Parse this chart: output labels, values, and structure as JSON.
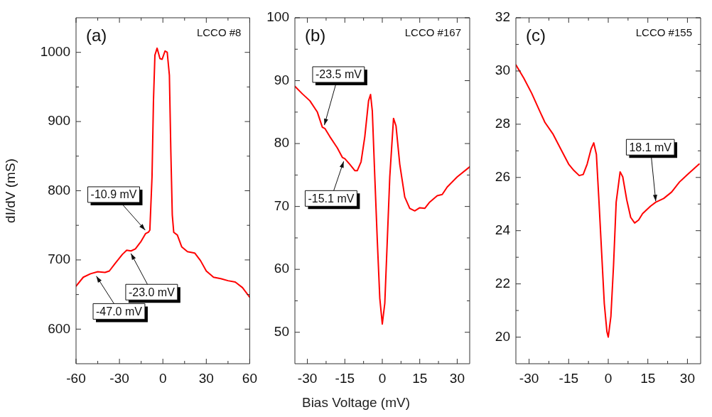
{
  "chart_data": [
    {
      "type": "line",
      "title": "(a)",
      "ylabel": "dI/dV (mS)",
      "annotations": [
        "LCCO #8",
        {
          "text": "-10.9 mV",
          "x": -10.9,
          "y": 740
        },
        {
          "text": "-23.0 mV",
          "x": -23.0,
          "y": 713
        },
        {
          "text": "-47.0 mV",
          "x": -47.0,
          "y": 680
        }
      ],
      "xlim": [
        -60,
        60
      ],
      "xticks": [
        -60,
        {
          "value": -45,
          "label": null
        },
        -30,
        {
          "value": -15,
          "label": null
        },
        0,
        {
          "value": 15,
          "label": null
        },
        30,
        {
          "value": 45,
          "label": null
        },
        60
      ],
      "ylim": [
        550,
        1050
      ],
      "yticks": [
        600,
        {
          "value": 650,
          "label": null
        },
        700,
        {
          "value": 750,
          "label": null
        },
        800,
        {
          "value": 850,
          "label": null
        },
        900,
        {
          "value": 950,
          "label": null
        },
        1000
      ],
      "grid": false,
      "legend": false,
      "marker": "none",
      "line_style": "solid",
      "series": [
        {
          "color": "#ff0000",
          "x": [
            -60,
            -55,
            -50,
            -45,
            -40,
            -37,
            -33,
            -28,
            -25,
            -22,
            -19,
            -15,
            -12,
            -10,
            -9,
            -7.5,
            -6.5,
            -5.5,
            -4,
            -2,
            -0.5,
            1.5,
            3,
            4.5,
            5.5,
            6.5,
            7.5,
            10,
            13,
            17,
            22,
            26,
            30,
            35,
            40,
            45,
            50,
            55,
            60
          ],
          "values": [
            662,
            675,
            680,
            683,
            682,
            684,
            695,
            708,
            714,
            713,
            716,
            727,
            738,
            740,
            743,
            820,
            930,
            996,
            1006,
            991,
            990,
            1002,
            1000,
            967,
            857,
            765,
            740,
            736,
            719,
            712,
            710,
            699,
            684,
            675,
            673,
            670,
            668,
            660,
            646
          ]
        }
      ]
    },
    {
      "type": "line",
      "title": "(b)",
      "xlabel": "Bias Voltage (mV)",
      "annotations": [
        "LCCO #167",
        {
          "text": "-23.5 mV",
          "x": -23.5,
          "y": 82.5
        },
        {
          "text": "-15.1 mV",
          "x": -15.1,
          "y": 77.6
        }
      ],
      "xlim": [
        -35,
        35
      ],
      "xticks": [
        -30,
        {
          "value": -22.5,
          "label": null
        },
        -15,
        {
          "value": -7.5,
          "label": null
        },
        0,
        {
          "value": 7.5,
          "label": null
        },
        15,
        {
          "value": 22.5,
          "label": null
        },
        30
      ],
      "ylim": [
        45,
        100
      ],
      "yticks": [
        50,
        {
          "value": 55,
          "label": null
        },
        60,
        {
          "value": 65,
          "label": null
        },
        70,
        {
          "value": 75,
          "label": null
        },
        80,
        {
          "value": 85,
          "label": null
        },
        90,
        {
          "value": 95,
          "label": null
        },
        100
      ],
      "grid": false,
      "legend": false,
      "marker": "none",
      "line_style": "solid",
      "series": [
        {
          "color": "#ff0000",
          "x": [
            -35,
            -32,
            -29,
            -26,
            -24,
            -23,
            -21,
            -18,
            -16,
            -15,
            -13,
            -11,
            -10,
            -8.5,
            -7,
            -5.5,
            -4.7,
            -4,
            -3,
            -2,
            -1,
            0,
            1,
            2,
            3,
            4.5,
            5.5,
            7,
            9,
            11,
            13,
            15,
            17,
            19,
            22,
            24,
            26,
            30,
            35
          ],
          "values": [
            89.1,
            87.9,
            86.8,
            85.0,
            82.6,
            82.4,
            81.1,
            79.3,
            77.8,
            77.6,
            76.7,
            75.7,
            75.7,
            77.1,
            81.1,
            86.8,
            87.8,
            85.2,
            74.7,
            64.6,
            55.4,
            51.3,
            54.6,
            64.6,
            74.7,
            84.0,
            82.8,
            76.7,
            71.5,
            69.7,
            69.3,
            69.8,
            69.7,
            70.7,
            71.7,
            71.9,
            73.1,
            74.7,
            76.3
          ]
        }
      ]
    },
    {
      "type": "line",
      "title": "(c)",
      "annotations": [
        "LCCO #155",
        {
          "text": "18.1 mV",
          "x": 18.1,
          "y": 25.0
        }
      ],
      "xlim": [
        -35,
        35
      ],
      "xticks": [
        -30,
        {
          "value": -22.5,
          "label": null
        },
        -15,
        {
          "value": -7.5,
          "label": null
        },
        0,
        {
          "value": 7.5,
          "label": null
        },
        15,
        {
          "value": 22.5,
          "label": null
        },
        30
      ],
      "ylim": [
        19,
        32
      ],
      "yticks": [
        20,
        {
          "value": 21,
          "label": null
        },
        22,
        {
          "value": 23,
          "label": null
        },
        24,
        {
          "value": 25,
          "label": null
        },
        26,
        {
          "value": 27,
          "label": null
        },
        28,
        {
          "value": 29,
          "label": null
        },
        30,
        {
          "value": 31,
          "label": null
        },
        32
      ],
      "grid": false,
      "legend": false,
      "marker": "none",
      "line_style": "solid",
      "series": [
        {
          "color": "#ff0000",
          "x": [
            -35,
            -32,
            -29,
            -26,
            -24,
            -21,
            -18,
            -15,
            -13,
            -11,
            -9.5,
            -8,
            -6.5,
            -5.5,
            -4.5,
            -3.5,
            -2.5,
            -1.5,
            -0.5,
            0,
            1,
            2,
            3,
            4.5,
            5.5,
            7,
            8.5,
            10,
            11.5,
            13,
            16,
            18,
            21,
            24,
            27,
            30,
            34.4
          ],
          "values": [
            30.23,
            29.73,
            29.16,
            28.5,
            28.07,
            27.64,
            27.07,
            26.5,
            26.26,
            26.07,
            26.11,
            26.5,
            27.07,
            27.3,
            26.87,
            25.07,
            23.16,
            21.26,
            20.2,
            20.0,
            20.78,
            22.69,
            25.07,
            26.21,
            26.02,
            25.16,
            24.5,
            24.29,
            24.4,
            24.64,
            24.92,
            25.07,
            25.21,
            25.45,
            25.83,
            26.11,
            26.5
          ]
        }
      ]
    }
  ]
}
